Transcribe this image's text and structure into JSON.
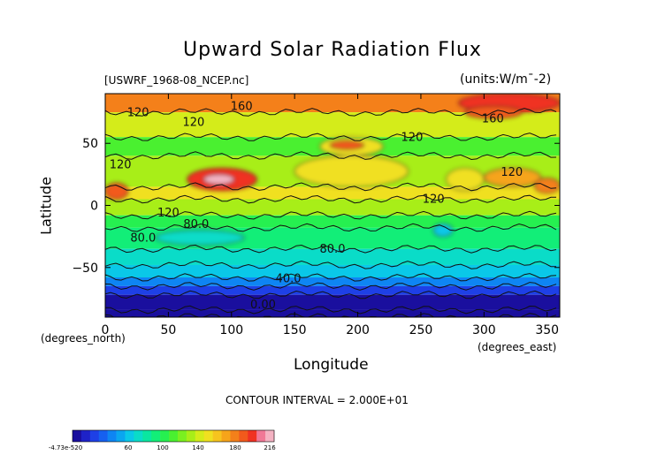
{
  "chart_data": {
    "type": "heatmap",
    "title": "Upward Solar Radiation Flux",
    "subtitle_left": "[USWRF_1968-08_NCEP.nc]",
    "subtitle_right": "(units:W/m^-2)",
    "xlabel": "Longitude",
    "ylabel": "Latitude",
    "x_unit_note": "(degrees_east)",
    "y_unit_note": "(degrees_north)",
    "xlim": [
      0,
      360
    ],
    "ylim": [
      -90,
      90
    ],
    "x_ticks": [
      0,
      50,
      100,
      150,
      200,
      250,
      300,
      350
    ],
    "y_ticks": [
      -50,
      0,
      50
    ],
    "contour_interval_text": "CONTOUR INTERVAL = 2.000E+01",
    "colorbar": {
      "tick_labels": [
        "-4.73e-520",
        "60",
        "100",
        "140",
        "180",
        "216"
      ],
      "min": 0,
      "max": 216,
      "colors": [
        "#1a0f9e",
        "#1e22c8",
        "#1e40e6",
        "#1660f0",
        "#0e85f3",
        "#0aa6f0",
        "#0ac8e8",
        "#0adcc8",
        "#0ae6a0",
        "#12ee78",
        "#26f050",
        "#4af030",
        "#7af020",
        "#a8ee18",
        "#d4ec1a",
        "#f0e020",
        "#f7c41e",
        "#f6a41a",
        "#f4801a",
        "#f25a1c",
        "#f03222",
        "#f07896",
        "#f4b2c2"
      ]
    },
    "contour_labels": [
      {
        "text": "160",
        "lon": 108,
        "lat": 77
      },
      {
        "text": "160",
        "lon": 307,
        "lat": 67
      },
      {
        "text": "120",
        "lon": 26,
        "lat": 72
      },
      {
        "text": "120",
        "lon": 70,
        "lat": 64
      },
      {
        "text": "120",
        "lon": 243,
        "lat": 52
      },
      {
        "text": "120",
        "lon": 12,
        "lat": 30
      },
      {
        "text": "120",
        "lon": 322,
        "lat": 24
      },
      {
        "text": "120",
        "lon": 260,
        "lat": 2
      },
      {
        "text": "120",
        "lon": 50,
        "lat": -9
      },
      {
        "text": "80.0",
        "lon": 72,
        "lat": -18
      },
      {
        "text": "80.0",
        "lon": 30,
        "lat": -29
      },
      {
        "text": "80.0",
        "lon": 180,
        "lat": -38
      },
      {
        "text": "40.0",
        "lon": 145,
        "lat": -62
      },
      {
        "text": "0.00",
        "lon": 125,
        "lat": -83
      }
    ],
    "latitude_bands": [
      {
        "lat": [
          75,
          90
        ],
        "value": 170
      },
      {
        "lat": [
          55,
          75
        ],
        "value": 135
      },
      {
        "lat": [
          40,
          55
        ],
        "value": 112
      },
      {
        "lat": [
          15,
          40
        ],
        "value": 125
      },
      {
        "lat": [
          5,
          15
        ],
        "value": 150
      },
      {
        "lat": [
          -8,
          5
        ],
        "value": 125
      },
      {
        "lat": [
          -18,
          -8
        ],
        "value": 102
      },
      {
        "lat": [
          -35,
          -18
        ],
        "value": 85
      },
      {
        "lat": [
          -48,
          -35
        ],
        "value": 75
      },
      {
        "lat": [
          -58,
          -48
        ],
        "value": 60
      },
      {
        "lat": [
          -65,
          -58
        ],
        "value": 40
      },
      {
        "lat": [
          -72,
          -65
        ],
        "value": 25
      },
      {
        "lat": [
          -84,
          -72
        ],
        "value": 8
      },
      {
        "lat": [
          -90,
          -84
        ],
        "value": 0
      }
    ],
    "patches": [
      {
        "lon": [
          280,
          360
        ],
        "lat": [
          75,
          90
        ],
        "value": 195
      },
      {
        "lon": [
          285,
          330
        ],
        "lat": [
          70,
          80
        ],
        "value": 185
      },
      {
        "lon": [
          0,
          18
        ],
        "lat": [
          5,
          18
        ],
        "value": 185
      },
      {
        "lon": [
          65,
          120
        ],
        "lat": [
          12,
          30
        ],
        "value": 195
      },
      {
        "lon": [
          78,
          102
        ],
        "lat": [
          17,
          25
        ],
        "value": 210
      },
      {
        "lon": [
          170,
          220
        ],
        "lat": [
          40,
          55
        ],
        "value": 150
      },
      {
        "lon": [
          178,
          205
        ],
        "lat": [
          45,
          52
        ],
        "value": 185
      },
      {
        "lon": [
          270,
          300
        ],
        "lat": [
          12,
          30
        ],
        "value": 150
      },
      {
        "lon": [
          300,
          345
        ],
        "lat": [
          15,
          30
        ],
        "value": 165
      },
      {
        "lon": [
          340,
          360
        ],
        "lat": [
          10,
          22
        ],
        "value": 175
      },
      {
        "lon": [
          150,
          240
        ],
        "lat": [
          15,
          40
        ],
        "value": 150
      },
      {
        "lon": [
          40,
          110
        ],
        "lat": [
          -32,
          -20
        ],
        "value": 72
      },
      {
        "lon": [
          260,
          275
        ],
        "lat": [
          -25,
          -15
        ],
        "value": 60
      }
    ]
  }
}
